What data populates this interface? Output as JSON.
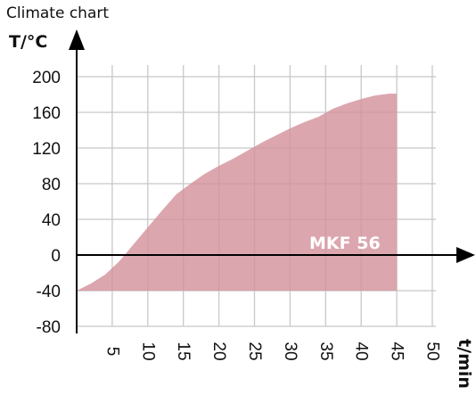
{
  "page": {
    "title": "Climate chart"
  },
  "chart_data": {
    "type": "area",
    "title": "",
    "xlabel": "t/min",
    "ylabel": "T/°C",
    "xlim": [
      0,
      50
    ],
    "ylim": [
      -80,
      200
    ],
    "x_ticks": [
      5,
      10,
      15,
      20,
      25,
      30,
      35,
      40,
      45,
      50
    ],
    "y_ticks": [
      200,
      160,
      120,
      80,
      40,
      0,
      -40,
      -80
    ],
    "grid": true,
    "fill_color": "#d4939d",
    "axis_color": "#000000",
    "grid_color": "#c8c8c8",
    "series": [
      {
        "name": "MKF 56",
        "lower": -40,
        "x": [
          0,
          2,
          4,
          6,
          8,
          10,
          12,
          14,
          16,
          18,
          20,
          22,
          24,
          26,
          28,
          30,
          32,
          34,
          36,
          38,
          40,
          42,
          43,
          44,
          45
        ],
        "upper": [
          -40,
          -32,
          -22,
          -7,
          12,
          31,
          50,
          68,
          80,
          91,
          100,
          108,
          117,
          126,
          134,
          142,
          149,
          155,
          164,
          170,
          175,
          179,
          180,
          181,
          181
        ]
      }
    ]
  }
}
